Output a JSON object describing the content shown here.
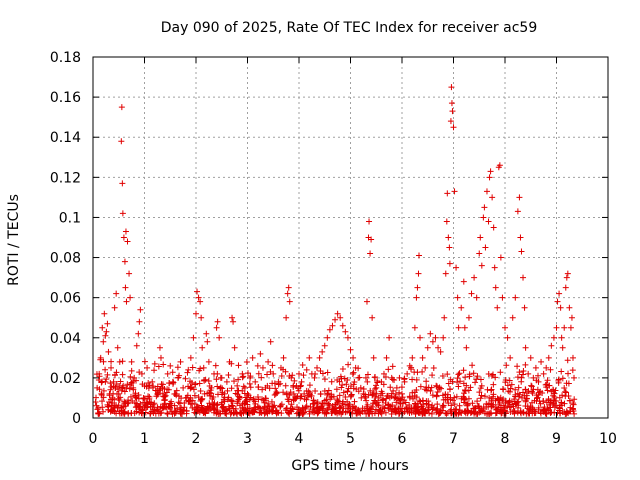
{
  "chart_data": {
    "type": "scatter",
    "title": "Day 090 of 2025, Rate Of TEC Index for receiver ac59",
    "xlabel": "GPS time / hours",
    "ylabel": "ROTI / TECUs",
    "xlim": [
      0,
      10
    ],
    "ylim": [
      0,
      0.18
    ],
    "x_ticks": [
      "0",
      "1",
      "2",
      "3",
      "4",
      "5",
      "6",
      "7",
      "8",
      "9",
      "10"
    ],
    "y_ticks": [
      "0",
      "0.02",
      "0.04",
      "0.06",
      "0.08",
      "0.1",
      "0.12",
      "0.14",
      "0.16",
      "0.18"
    ],
    "grid": true,
    "marker": "plus",
    "color": "#e00000",
    "series": [
      {
        "name": "ROTI",
        "points": [
          [
            0.05,
            0.008
          ],
          [
            0.08,
            0.015
          ],
          [
            0.1,
            0.005
          ],
          [
            0.12,
            0.022
          ],
          [
            0.15,
            0.03
          ],
          [
            0.18,
            0.045
          ],
          [
            0.2,
            0.038
          ],
          [
            0.22,
            0.052
          ],
          [
            0.24,
            0.041
          ],
          [
            0.26,
            0.043
          ],
          [
            0.28,
            0.047
          ],
          [
            0.3,
            0.033
          ],
          [
            0.32,
            0.012
          ],
          [
            0.35,
            0.025
          ],
          [
            0.38,
            0.01
          ],
          [
            0.4,
            0.018
          ],
          [
            0.42,
            0.055
          ],
          [
            0.45,
            0.062
          ],
          [
            0.48,
            0.035
          ],
          [
            0.5,
            0.012
          ],
          [
            0.52,
            0.028
          ],
          [
            0.55,
            0.138
          ],
          [
            0.56,
            0.155
          ],
          [
            0.57,
            0.117
          ],
          [
            0.58,
            0.102
          ],
          [
            0.6,
            0.09
          ],
          [
            0.62,
            0.078
          ],
          [
            0.63,
            0.065
          ],
          [
            0.64,
            0.093
          ],
          [
            0.65,
            0.058
          ],
          [
            0.67,
            0.088
          ],
          [
            0.7,
            0.072
          ],
          [
            0.72,
            0.06
          ],
          [
            0.75,
            0.028
          ],
          [
            0.78,
            0.015
          ],
          [
            0.8,
            0.02
          ],
          [
            0.85,
            0.036
          ],
          [
            0.88,
            0.042
          ],
          [
            0.9,
            0.048
          ],
          [
            0.92,
            0.054
          ],
          [
            0.95,
            0.022
          ],
          [
            0.98,
            0.01
          ],
          [
            1.0,
            0.016
          ],
          [
            1.05,
            0.025
          ],
          [
            1.1,
            0.008
          ],
          [
            1.15,
            0.018
          ],
          [
            1.2,
            0.027
          ],
          [
            1.25,
            0.012
          ],
          [
            1.3,
            0.035
          ],
          [
            1.32,
            0.03
          ],
          [
            1.35,
            0.015
          ],
          [
            1.4,
            0.009
          ],
          [
            1.45,
            0.022
          ],
          [
            1.5,
            0.026
          ],
          [
            1.55,
            0.018
          ],
          [
            1.6,
            0.012
          ],
          [
            1.65,
            0.02
          ],
          [
            1.7,
            0.028
          ],
          [
            1.75,
            0.015
          ],
          [
            1.8,
            0.01
          ],
          [
            1.85,
            0.024
          ],
          [
            1.9,
            0.03
          ],
          [
            1.95,
            0.04
          ],
          [
            2.0,
            0.052
          ],
          [
            2.02,
            0.063
          ],
          [
            2.05,
            0.06
          ],
          [
            2.08,
            0.058
          ],
          [
            2.1,
            0.05
          ],
          [
            2.12,
            0.035
          ],
          [
            2.15,
            0.025
          ],
          [
            2.2,
            0.042
          ],
          [
            2.22,
            0.038
          ],
          [
            2.25,
            0.028
          ],
          [
            2.3,
            0.015
          ],
          [
            2.35,
            0.022
          ],
          [
            2.4,
            0.045
          ],
          [
            2.42,
            0.048
          ],
          [
            2.45,
            0.04
          ],
          [
            2.5,
            0.02
          ],
          [
            2.55,
            0.012
          ],
          [
            2.6,
            0.018
          ],
          [
            2.65,
            0.028
          ],
          [
            2.7,
            0.05
          ],
          [
            2.72,
            0.048
          ],
          [
            2.75,
            0.035
          ],
          [
            2.8,
            0.016
          ],
          [
            2.85,
            0.01
          ],
          [
            2.9,
            0.022
          ],
          [
            2.95,
            0.015
          ],
          [
            3.0,
            0.012
          ],
          [
            3.05,
            0.02
          ],
          [
            3.1,
            0.03
          ],
          [
            3.15,
            0.018
          ],
          [
            3.2,
            0.026
          ],
          [
            3.25,
            0.032
          ],
          [
            3.3,
            0.025
          ],
          [
            3.35,
            0.015
          ],
          [
            3.4,
            0.028
          ],
          [
            3.45,
            0.038
          ],
          [
            3.5,
            0.022
          ],
          [
            3.55,
            0.012
          ],
          [
            3.6,
            0.018
          ],
          [
            3.65,
            0.025
          ],
          [
            3.7,
            0.03
          ],
          [
            3.75,
            0.05
          ],
          [
            3.78,
            0.062
          ],
          [
            3.8,
            0.065
          ],
          [
            3.82,
            0.058
          ],
          [
            3.85,
            0.02
          ],
          [
            3.9,
            0.012
          ],
          [
            3.95,
            0.016
          ],
          [
            4.0,
            0.022
          ],
          [
            4.05,
            0.018
          ],
          [
            4.1,
            0.012
          ],
          [
            4.15,
            0.024
          ],
          [
            4.2,
            0.03
          ],
          [
            4.25,
            0.022
          ],
          [
            4.3,
            0.02
          ],
          [
            4.35,
            0.025
          ],
          [
            4.4,
            0.03
          ],
          [
            4.45,
            0.033
          ],
          [
            4.5,
            0.036
          ],
          [
            4.55,
            0.04
          ],
          [
            4.6,
            0.044
          ],
          [
            4.65,
            0.046
          ],
          [
            4.7,
            0.049
          ],
          [
            4.75,
            0.052
          ],
          [
            4.8,
            0.05
          ],
          [
            4.85,
            0.046
          ],
          [
            4.9,
            0.043
          ],
          [
            4.95,
            0.04
          ],
          [
            5.0,
            0.034
          ],
          [
            5.05,
            0.03
          ],
          [
            5.1,
            0.025
          ],
          [
            5.15,
            0.02
          ],
          [
            5.2,
            0.015
          ],
          [
            5.25,
            0.012
          ],
          [
            5.3,
            0.02
          ],
          [
            5.32,
            0.058
          ],
          [
            5.35,
            0.09
          ],
          [
            5.36,
            0.098
          ],
          [
            5.38,
            0.082
          ],
          [
            5.4,
            0.089
          ],
          [
            5.42,
            0.05
          ],
          [
            5.45,
            0.03
          ],
          [
            5.5,
            0.015
          ],
          [
            5.55,
            0.01
          ],
          [
            5.6,
            0.018
          ],
          [
            5.65,
            0.022
          ],
          [
            5.7,
            0.03
          ],
          [
            5.75,
            0.04
          ],
          [
            5.8,
            0.02
          ],
          [
            5.85,
            0.01
          ],
          [
            5.9,
            0.015
          ],
          [
            5.95,
            0.02
          ],
          [
            6.0,
            0.012
          ],
          [
            6.05,
            0.018
          ],
          [
            6.1,
            0.022
          ],
          [
            6.15,
            0.026
          ],
          [
            6.2,
            0.03
          ],
          [
            6.25,
            0.045
          ],
          [
            6.28,
            0.06
          ],
          [
            6.3,
            0.065
          ],
          [
            6.32,
            0.072
          ],
          [
            6.33,
            0.081
          ],
          [
            6.35,
            0.04
          ],
          [
            6.4,
            0.03
          ],
          [
            6.45,
            0.025
          ],
          [
            6.5,
            0.035
          ],
          [
            6.55,
            0.042
          ],
          [
            6.6,
            0.038
          ],
          [
            6.65,
            0.04
          ],
          [
            6.7,
            0.035
          ],
          [
            6.75,
            0.033
          ],
          [
            6.8,
            0.04
          ],
          [
            6.82,
            0.05
          ],
          [
            6.85,
            0.072
          ],
          [
            6.87,
            0.098
          ],
          [
            6.88,
            0.112
          ],
          [
            6.9,
            0.09
          ],
          [
            6.92,
            0.085
          ],
          [
            6.93,
            0.077
          ],
          [
            6.95,
            0.148
          ],
          [
            6.96,
            0.165
          ],
          [
            6.97,
            0.157
          ],
          [
            6.98,
            0.153
          ],
          [
            7.0,
            0.145
          ],
          [
            7.02,
            0.113
          ],
          [
            7.05,
            0.075
          ],
          [
            7.08,
            0.06
          ],
          [
            7.1,
            0.045
          ],
          [
            7.15,
            0.055
          ],
          [
            7.2,
            0.068
          ],
          [
            7.22,
            0.045
          ],
          [
            7.25,
            0.035
          ],
          [
            7.3,
            0.05
          ],
          [
            7.35,
            0.062
          ],
          [
            7.4,
            0.07
          ],
          [
            7.45,
            0.06
          ],
          [
            7.5,
            0.082
          ],
          [
            7.52,
            0.09
          ],
          [
            7.55,
            0.076
          ],
          [
            7.58,
            0.1
          ],
          [
            7.6,
            0.105
          ],
          [
            7.62,
            0.085
          ],
          [
            7.65,
            0.113
          ],
          [
            7.68,
            0.098
          ],
          [
            7.7,
            0.12
          ],
          [
            7.72,
            0.123
          ],
          [
            7.75,
            0.11
          ],
          [
            7.78,
            0.095
          ],
          [
            7.8,
            0.075
          ],
          [
            7.82,
            0.065
          ],
          [
            7.85,
            0.055
          ],
          [
            7.88,
            0.125
          ],
          [
            7.9,
            0.126
          ],
          [
            7.92,
            0.08
          ],
          [
            7.95,
            0.06
          ],
          [
            8.0,
            0.045
          ],
          [
            8.05,
            0.04
          ],
          [
            8.1,
            0.03
          ],
          [
            8.15,
            0.05
          ],
          [
            8.2,
            0.06
          ],
          [
            8.25,
            0.103
          ],
          [
            8.28,
            0.11
          ],
          [
            8.3,
            0.09
          ],
          [
            8.32,
            0.083
          ],
          [
            8.35,
            0.07
          ],
          [
            8.38,
            0.055
          ],
          [
            8.4,
            0.035
          ],
          [
            8.45,
            0.022
          ],
          [
            8.5,
            0.03
          ],
          [
            8.55,
            0.02
          ],
          [
            8.6,
            0.025
          ],
          [
            8.65,
            0.018
          ],
          [
            8.7,
            0.028
          ],
          [
            8.75,
            0.022
          ],
          [
            8.8,
            0.025
          ],
          [
            8.85,
            0.03
          ],
          [
            8.9,
            0.036
          ],
          [
            8.95,
            0.04
          ],
          [
            9.0,
            0.045
          ],
          [
            9.02,
            0.058
          ],
          [
            9.05,
            0.062
          ],
          [
            9.08,
            0.055
          ],
          [
            9.1,
            0.04
          ],
          [
            9.12,
            0.035
          ],
          [
            9.15,
            0.045
          ],
          [
            9.18,
            0.065
          ],
          [
            9.2,
            0.07
          ],
          [
            9.22,
            0.072
          ],
          [
            9.25,
            0.055
          ],
          [
            9.28,
            0.045
          ],
          [
            9.3,
            0.05
          ],
          [
            9.32,
            0.03
          ],
          [
            9.34,
            0.02
          ]
        ]
      }
    ],
    "noise_band": {
      "x_range": [
        0.05,
        9.35
      ],
      "y_range": [
        0.002,
        0.03
      ],
      "count": 1400
    }
  }
}
